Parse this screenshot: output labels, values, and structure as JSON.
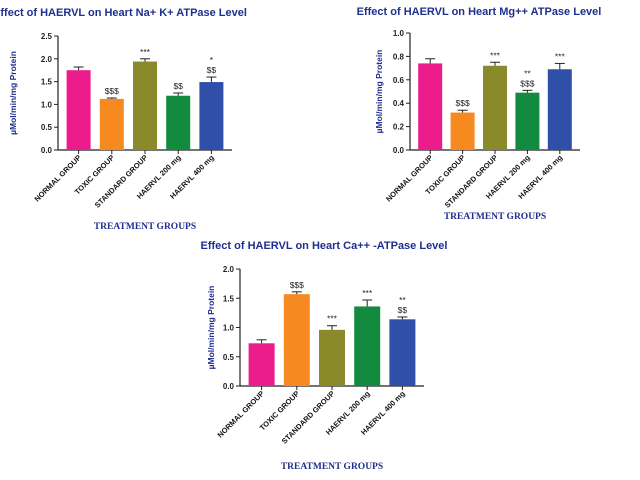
{
  "chart_data": [
    {
      "type": "bar",
      "title": "Effect of HAERVL on Heart Na+ K+ ATPase Level",
      "ylabel": "µMol/min/mg Protein",
      "xlabel": "TREATMENT GROUPS",
      "ylim": [
        0,
        2.5
      ],
      "yticks": [
        "0.0",
        "0.5",
        "1.0",
        "1.5",
        "2.0",
        "2.5"
      ],
      "categories": [
        "NORMAL GROUP",
        "TOXIC GROUP",
        "STANDARD GROUP",
        "HAERVL 200 mg",
        "HAERVL 400 mg"
      ],
      "values": [
        1.75,
        1.12,
        1.94,
        1.19,
        1.49
      ],
      "errors": [
        0.07,
        0.02,
        0.06,
        0.06,
        0.11
      ],
      "colors": [
        "#ec1c8c",
        "#f6891f",
        "#8a8a2a",
        "#128b3f",
        "#2f4fa8"
      ],
      "annotations": [
        [],
        [
          "$$$"
        ],
        [
          "***"
        ],
        [
          "$$"
        ],
        [
          "*",
          "$$"
        ]
      ]
    },
    {
      "type": "bar",
      "title": "Effect of HAERVL on Heart Mg++ ATPase Level",
      "ylabel": "µMol/min/mg Protein",
      "xlabel": "TREATMENT GROUPS",
      "ylim": [
        0,
        1.0
      ],
      "yticks": [
        "0.0",
        "0.2",
        "0.4",
        "0.6",
        "0.8",
        "1.0"
      ],
      "categories": [
        "NORMAL GROUP",
        "TOXIC GROUP",
        "STANDARD GROUP",
        "HAERVL 200 mg",
        "HAERVL 400 mg"
      ],
      "values": [
        0.74,
        0.32,
        0.72,
        0.49,
        0.69
      ],
      "errors": [
        0.04,
        0.02,
        0.03,
        0.02,
        0.05
      ],
      "colors": [
        "#ec1c8c",
        "#f6891f",
        "#8a8a2a",
        "#128b3f",
        "#2f4fa8"
      ],
      "annotations": [
        [],
        [
          "$$$"
        ],
        [
          "***"
        ],
        [
          "**",
          "$$$"
        ],
        [
          "***"
        ]
      ]
    },
    {
      "type": "bar",
      "title": "Effect of HAERVL on Heart Ca++ -ATPase Level",
      "ylabel": "µMol/min/mg Protein",
      "xlabel": "TREATMENT GROUPS",
      "ylim": [
        0,
        2.0
      ],
      "yticks": [
        "0.0",
        "0.5",
        "1.0",
        "1.5",
        "2.0"
      ],
      "categories": [
        "NORMAL GROUP",
        "TOXIC GROUP",
        "STANDARD GROUP",
        "HAERVL 200 mg",
        "HAERVL 400 mg"
      ],
      "values": [
        0.73,
        1.57,
        0.96,
        1.36,
        1.14
      ],
      "errors": [
        0.06,
        0.04,
        0.07,
        0.11,
        0.04
      ],
      "colors": [
        "#ec1c8c",
        "#f6891f",
        "#8a8a2a",
        "#128b3f",
        "#2f4fa8"
      ],
      "annotations": [
        [],
        [
          "$$$"
        ],
        [
          "***"
        ],
        [
          "***"
        ],
        [
          "**",
          "$$"
        ]
      ]
    }
  ]
}
